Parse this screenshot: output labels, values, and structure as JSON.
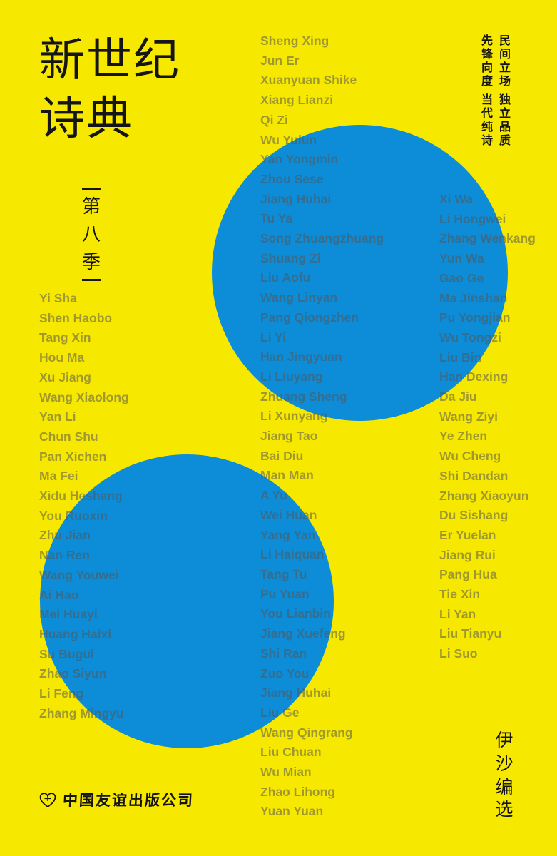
{
  "cover": {
    "title_line1": "新世纪",
    "title_line2": "诗典",
    "season_chars": [
      "第",
      "八",
      "季"
    ],
    "slogans": {
      "group1": {
        "right": "民间立场",
        "left": "先锋向度"
      },
      "group2": {
        "right": "独立品质",
        "left": "当代纯诗"
      }
    },
    "editor": {
      "name": "伊沙",
      "role": "编选"
    },
    "publisher": "中国友谊出版公司",
    "publisher_logo_icon": "heart-friendship-logo",
    "colors": {
      "background_yellow": "#F7E800",
      "circle_blue": "#0D8CD8",
      "ink_black": "#151515",
      "name_ink": "rgba(85,85,85,0.55)"
    }
  },
  "poets": {
    "left_column": [
      "Yi Sha",
      "Shen Haobo",
      "Tang Xin",
      "Hou Ma",
      "Xu Jiang",
      "Wang Xiaolong",
      "Yan Li",
      "Chun Shu",
      "Pan Xichen",
      "Ma Fei",
      "Xidu Heshang",
      "You Ruoxin",
      "Zhu Jian",
      "Nan Ren",
      "Wang Youwei",
      "Ai Hao",
      "Mei Huayi",
      "Huang Haixi",
      "Su Bugui",
      "Zhao Siyun",
      "Li Feng",
      "Zhang Mingyu"
    ],
    "middle_column": [
      "Sheng Xing",
      "Jun Er",
      "Xuanyuan Shike",
      "Xiang Lianzi",
      "Qi Zi",
      "Wu Yulun",
      "Yan Yongmin",
      "Zhou Sese",
      "Jiang Huhai",
      "Tu Ya",
      "Song Zhuangzhuang",
      "Shuang Zi",
      "Liu Aofu",
      "Wang Linyan",
      "Pang Qiongzhen",
      "Li Yi",
      "Han Jingyuan",
      "Li Liuyang",
      "Zhuang Sheng",
      "Li Xunyang",
      "Jiang Tao",
      "Bai Diu",
      "Man Man",
      "A Yu",
      "Wei Huan",
      "Yang Yan",
      "Li Haiquan",
      "Tang Tu",
      "Pu Yuan",
      "You Lianbin",
      "Jiang Xuefeng",
      "Shi Ran",
      "Zuo You",
      "Jiang Huhai",
      "Liu Ge",
      "Wang Qingrang",
      "Liu Chuan",
      "Wu Mian",
      "Zhao Lihong",
      "Yuan Yuan"
    ],
    "right_column": [
      "Xi Wa",
      "Li Hongwei",
      "Zhang Wenkang",
      "Yun Wa",
      "Gao Ge",
      "Ma Jinshan",
      "Pu Yongjian",
      "Wu Tongzi",
      "Liu Bin",
      "Han Dexing",
      "Da Jiu",
      "Wang Ziyi",
      "Ye Zhen",
      "Wu Cheng",
      "Shi Dandan",
      "Zhang Xiaoyun",
      "Du Sishang",
      "Er Yuelan",
      "Jiang Rui",
      "Pang Hua",
      "Tie Xin",
      "Li Yan",
      "Liu Tianyu",
      "Li Suo"
    ]
  }
}
